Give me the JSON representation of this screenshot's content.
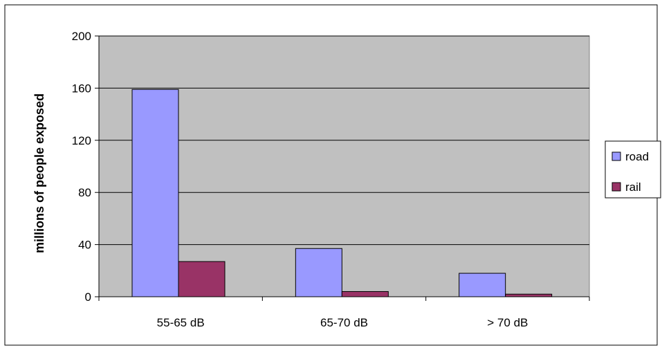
{
  "chart_data": {
    "type": "bar",
    "title": "",
    "xlabel": "",
    "ylabel": "millions of people exposed",
    "categories": [
      "55-65 dB",
      "65-70 dB",
      "> 70 dB"
    ],
    "series": [
      {
        "name": "road",
        "values": [
          159,
          37,
          18
        ],
        "color": "#9999ff"
      },
      {
        "name": "rail",
        "values": [
          27,
          4,
          2
        ],
        "color": "#993366"
      }
    ],
    "ylim": [
      0,
      200
    ],
    "yticks": [
      0,
      40,
      80,
      120,
      160,
      200
    ],
    "grid": true,
    "legend": "right",
    "plot_background": "#c0c0c0"
  }
}
